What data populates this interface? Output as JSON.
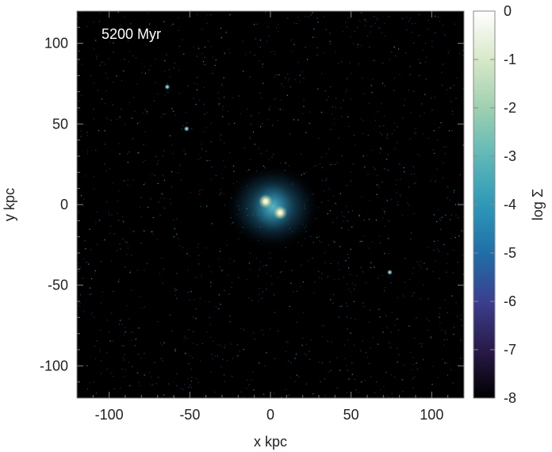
{
  "chart_data": {
    "type": "heatmap",
    "annotation": "5200 Myr",
    "xlabel": "x kpc",
    "ylabel": "y kpc",
    "xlim": [
      -120,
      120
    ],
    "ylim": [
      -120,
      120
    ],
    "xticks": [
      -100,
      -50,
      0,
      50,
      100
    ],
    "yticks": [
      -100,
      -50,
      0,
      50,
      100
    ],
    "xtick_labels": [
      "-100",
      "-50",
      "0",
      "50",
      "100"
    ],
    "ytick_labels": [
      "-100",
      "-50",
      "0",
      "50",
      "100"
    ],
    "colorbar": {
      "label": "log Σ",
      "range": [
        -8,
        0
      ],
      "ticks": [
        0,
        -1,
        -2,
        -3,
        -4,
        -5,
        -6,
        -7,
        -8
      ],
      "tick_labels": [
        "0",
        "-1",
        "-2",
        "-3",
        "-4",
        "-5",
        "-6",
        "-7",
        "-8"
      ],
      "colors": [
        "#000000",
        "#2a1a4a",
        "#3b3f8f",
        "#1f6fa8",
        "#2f98b8",
        "#5fb8b8",
        "#9fd0b0",
        "#d8e8c8",
        "#ffffff"
      ]
    },
    "features": [
      {
        "kind": "nucleus",
        "x": -3,
        "y": 2,
        "log_sigma": -1
      },
      {
        "kind": "nucleus",
        "x": 6,
        "y": -5,
        "log_sigma": -1
      },
      {
        "kind": "satellite",
        "x": -64,
        "y": 73,
        "log_sigma": -3
      },
      {
        "kind": "satellite",
        "x": -52,
        "y": 47,
        "log_sigma": -3.5
      },
      {
        "kind": "satellite",
        "x": 74,
        "y": -42,
        "log_sigma": -3.5
      }
    ]
  }
}
